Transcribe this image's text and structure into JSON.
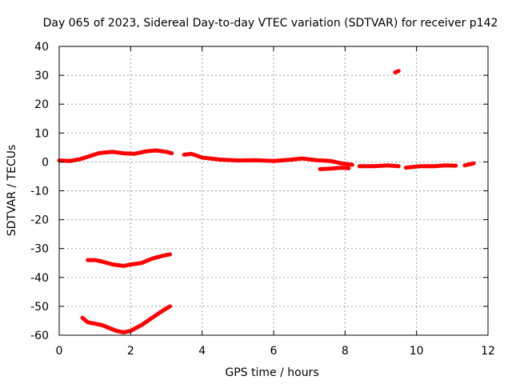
{
  "chart_data": {
    "type": "line",
    "title": "Day 065 of 2023, Sidereal Day-to-day VTEC variation (SDTVAR) for receiver p142",
    "xlabel": "GPS time / hours",
    "ylabel": "SDTVAR / TECUs",
    "xlim": [
      0,
      12
    ],
    "ylim": [
      -60,
      40
    ],
    "xticks": [
      0,
      2,
      4,
      6,
      8,
      10,
      12
    ],
    "yticks": [
      -60,
      -50,
      -40,
      -30,
      -20,
      -10,
      0,
      10,
      20,
      30,
      40
    ],
    "grid": true,
    "legend": "none",
    "color": "#ff0000",
    "series": [
      {
        "name": "main-early",
        "x": [
          0,
          0.3,
          0.6,
          0.9,
          1.1,
          1.3,
          1.5,
          1.8,
          2.1,
          2.4,
          2.7,
          3.0,
          3.15
        ],
        "y": [
          0.5,
          0.3,
          1.0,
          2.2,
          3.0,
          3.3,
          3.5,
          3.0,
          2.8,
          3.6,
          4.0,
          3.5,
          3.0
        ]
      },
      {
        "name": "main-mid",
        "x": [
          3.5,
          3.7,
          4.0,
          4.5,
          5.0,
          5.5,
          6.0,
          6.5,
          6.8,
          7.2,
          7.6,
          7.9,
          8.2
        ],
        "y": [
          2.5,
          2.8,
          1.5,
          0.8,
          0.5,
          0.6,
          0.3,
          0.8,
          1.2,
          0.6,
          0.3,
          -0.5,
          -1.0
        ]
      },
      {
        "name": "low-branch",
        "x": [
          7.3,
          7.6,
          7.9,
          8.1
        ],
        "y": [
          -2.5,
          -2.3,
          -2.0,
          -2.2
        ]
      },
      {
        "name": "main-late",
        "x": [
          8.4,
          8.8,
          9.2,
          9.5
        ],
        "y": [
          -1.5,
          -1.5,
          -1.2,
          -1.5
        ]
      },
      {
        "name": "main-end",
        "x": [
          9.7,
          10.1,
          10.5,
          10.8,
          11.1
        ],
        "y": [
          -2.0,
          -1.5,
          -1.5,
          -1.2,
          -1.3
        ]
      },
      {
        "name": "tail",
        "x": [
          11.35,
          11.6
        ],
        "y": [
          -1.2,
          -0.5
        ]
      },
      {
        "name": "outlier",
        "x": [
          9.4,
          9.5
        ],
        "y": [
          31.0,
          31.5
        ]
      },
      {
        "name": "mid-lower",
        "x": [
          0.8,
          1.0,
          1.2,
          1.5,
          1.8,
          2.0,
          2.3,
          2.6,
          2.9,
          3.1
        ],
        "y": [
          -34.0,
          -34.0,
          -34.5,
          -35.5,
          -36.0,
          -35.5,
          -35.0,
          -33.5,
          -32.5,
          -32.0
        ]
      },
      {
        "name": "bottom",
        "x": [
          0.65,
          0.8,
          1.0,
          1.2,
          1.4,
          1.6,
          1.8,
          2.0,
          2.3,
          2.6,
          2.9,
          3.1
        ],
        "y": [
          -54.0,
          -55.5,
          -56.0,
          -56.5,
          -57.5,
          -58.5,
          -59.0,
          -58.5,
          -56.5,
          -54.0,
          -51.5,
          -50.0
        ]
      }
    ]
  }
}
